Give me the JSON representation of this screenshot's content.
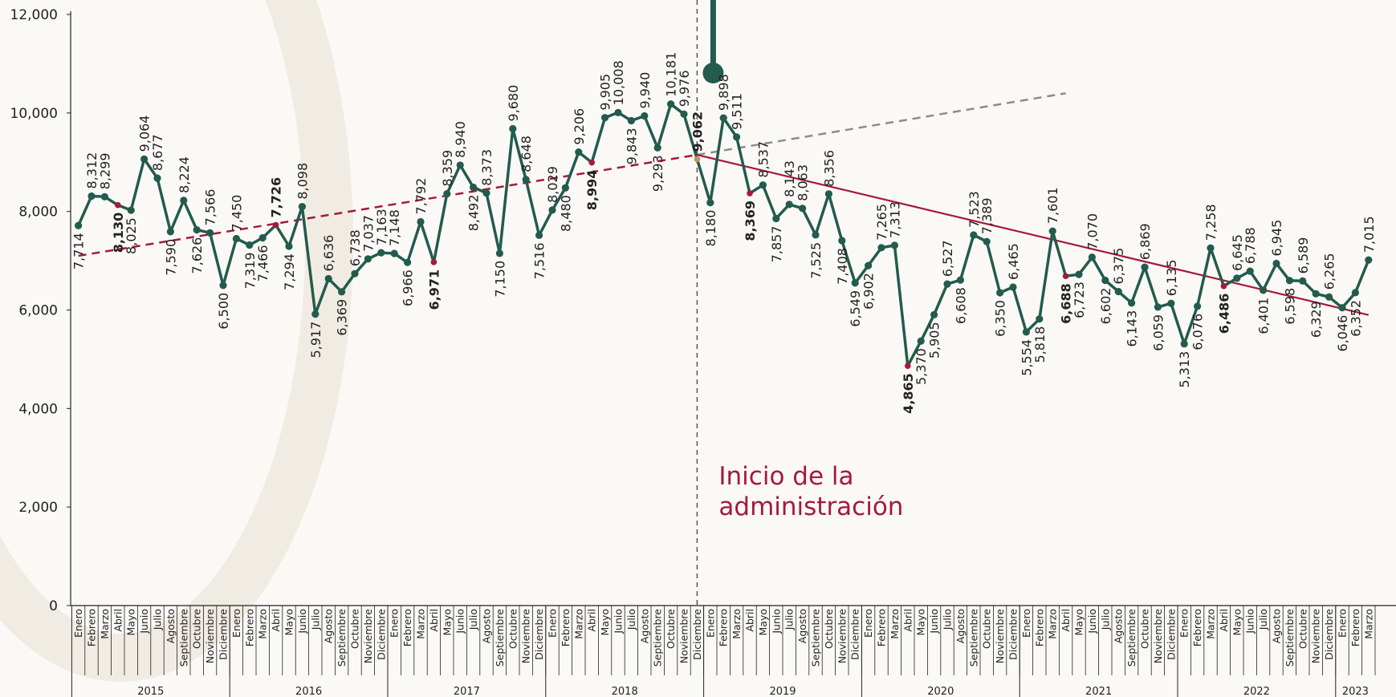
{
  "chart_data": {
    "type": "line",
    "ylim": [
      0,
      12000
    ],
    "yticks": [
      0,
      {
        "value": 2000,
        "label": "2,000"
      },
      {
        "value": 4000,
        "label": "4,000"
      },
      {
        "value": 6000,
        "label": "6,000"
      },
      {
        "value": 8000,
        "label": "8,000"
      },
      {
        "value": 10000,
        "label": "10,000"
      },
      {
        "value": 12000,
        "label": "12,000"
      }
    ],
    "years": [
      "2015",
      "2016",
      "2017",
      "2018",
      "2019",
      "2020",
      "2021",
      "2022",
      "2023"
    ],
    "categories": [
      "Enero",
      "Febrero",
      "Marzo",
      "Abril",
      "Mayo",
      "Junio",
      "Julio",
      "Agosto",
      "Septiembre",
      "Octubre",
      "Noviembre",
      "Diciembre",
      "Enero",
      "Febrero",
      "Marzo",
      "Abril",
      "Mayo",
      "Junio",
      "Julio",
      "Agosto",
      "Septiembre",
      "Octubre",
      "Noviembre",
      "Diciembre",
      "Enero",
      "Febrero",
      "Marzo",
      "Abril",
      "Mayo",
      "Junio",
      "Julio",
      "Agosto",
      "Septiembre",
      "Octubre",
      "Noviembre",
      "Diciembre",
      "Enero",
      "Febrero",
      "Marzo",
      "Abril",
      "Mayo",
      "Junio",
      "Julio",
      "Agosto",
      "Septiembre",
      "Octubre",
      "Noviembre",
      "Diciembre",
      "Enero",
      "Febrero",
      "Marzo",
      "Abril",
      "Mayo",
      "Junio",
      "Julio",
      "Agosto",
      "Septiembre",
      "Octubre",
      "Noviembre",
      "Diciembre",
      "Enero",
      "Febrero",
      "Marzo",
      "Abril",
      "Mayo",
      "Junio",
      "Julio",
      "Agosto",
      "Septiembre",
      "Octubre",
      "Noviembre",
      "Diciembre",
      "Enero",
      "Febrero",
      "Marzo",
      "Abril",
      "Mayo",
      "Junio",
      "Julio",
      "Agosto",
      "Septiembre",
      "Octubre",
      "Noviembre",
      "Diciembre",
      "Enero",
      "Febrero",
      "Marzo",
      "Abril",
      "Mayo",
      "Junio",
      "Julio",
      "Agosto",
      "Septiembre",
      "Octubre",
      "Noviembre",
      "Diciembre",
      "Enero",
      "Febrero",
      "Marzo"
    ],
    "series": [
      {
        "color": "#235b4e",
        "values": [
          7714,
          8312,
          8299,
          8130,
          8025,
          9064,
          8677,
          7590,
          8224,
          7626,
          7566,
          6500,
          7450,
          7319,
          7466,
          7726,
          7294,
          8098,
          5917,
          6636,
          6369,
          6738,
          7037,
          7163,
          7148,
          6966,
          7792,
          6971,
          8359,
          8940,
          8492,
          8373,
          7150,
          9680,
          8648,
          7516,
          8029,
          8480,
          9206,
          8994,
          9905,
          10008,
          9843,
          9940,
          9293,
          10181,
          9976,
          9062,
          8180,
          9898,
          9511,
          8369,
          8537,
          7857,
          8143,
          8063,
          7525,
          8356,
          7408,
          6549,
          6902,
          7265,
          7313,
          4865,
          5370,
          5905,
          6527,
          6608,
          7523,
          7389,
          6350,
          6465,
          5554,
          5818,
          7601,
          6688,
          6723,
          7070,
          6602,
          6375,
          6143,
          6869,
          6059,
          6135,
          5313,
          6076,
          7258,
          6486,
          6645,
          6788,
          6401,
          6945,
          6598,
          6589,
          6329,
          6265,
          6046,
          6352,
          7015
        ],
        "value_labels": [
          "7,714",
          "8,312",
          "8,299",
          "8,130",
          "8,025",
          "9,064",
          "8,677",
          "7,590",
          "8,224",
          "7,626",
          "7,566",
          "6,500",
          "7,450",
          "7,319",
          "7,466",
          "7,726",
          "7,294",
          "8,098",
          "5,917",
          "6,636",
          "6,369",
          "6,738",
          "7,037",
          "7,163",
          "7,148",
          "6,966",
          "7,792",
          "6,971",
          "8,359",
          "8,940",
          "8,492",
          "8,373",
          "7,150",
          "9,680",
          "8,648",
          "7,516",
          "8,029",
          "8,480",
          "9,206",
          "8,994",
          "9,905",
          "10,008",
          "9,843",
          "9,940",
          "9,293",
          "10,181",
          "9,976",
          "9,062",
          "8,180",
          "9,898",
          "9,511",
          "8,369",
          "8,537",
          "7,857",
          "8,143",
          "8,063",
          "7,525",
          "8,356",
          "7,408",
          "6,549",
          "6,902",
          "7,265",
          "7,313",
          "4,865",
          "5,370",
          "5,905",
          "6,527",
          "6,608",
          "7,523",
          "7,389",
          "6,350",
          "6,465",
          "5,554",
          "5,818",
          "7,601",
          "6,688",
          "6,723",
          "7,070",
          "6,602",
          "6,375",
          "6,143",
          "6,869",
          "6,059",
          "6,135",
          "5,313",
          "6,076",
          "7,258",
          "6,486",
          "6,645",
          "6,788",
          "6,401",
          "6,945",
          "6,598",
          "6,589",
          "6,329",
          "6,265",
          "6,046",
          "6,352",
          "7,015"
        ]
      }
    ],
    "highlight_month": "Abril",
    "highlight_color": "#a6193c",
    "annotation": {
      "text_lines": [
        "Inicio de la",
        "administración"
      ],
      "year": "2018",
      "month": "Diciembre",
      "color": "#a6193c",
      "point_color": "#bc955c"
    },
    "trend_lines": [
      {
        "from": {
          "year": "2015",
          "month": "Enero",
          "value": 7100
        },
        "to": {
          "year": "2018",
          "month": "Diciembre",
          "value": 9150
        },
        "color": "#a6193c",
        "dashed": true
      },
      {
        "from": {
          "year": "2018",
          "month": "Diciembre",
          "value": 9150
        },
        "to": {
          "year": "2021",
          "month": "Abril",
          "value": 10400
        },
        "color": "#8c8c8c",
        "dashed": true
      },
      {
        "from": {
          "year": "2018",
          "month": "Diciembre",
          "value": 9150
        },
        "to": {
          "year": "2023",
          "month": "Marzo",
          "value": 5900
        },
        "color": "#a6193c",
        "dashed": false
      }
    ]
  }
}
